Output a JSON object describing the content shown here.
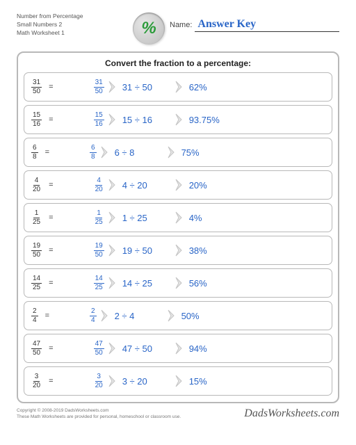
{
  "header": {
    "line1": "Number from Percentage",
    "line2": "Small Numbers 2",
    "line3": "Math Worksheet 1",
    "name_label": "Name:",
    "answer_key": "Answer Key"
  },
  "title": "Convert the fraction to a percentage:",
  "rows": [
    {
      "num": "31",
      "den": "50",
      "div": "31 ÷ 50",
      "pct": "62%"
    },
    {
      "num": "15",
      "den": "16",
      "div": "15 ÷ 16",
      "pct": "93.75%"
    },
    {
      "num": "6",
      "den": "8",
      "div": "6 ÷ 8",
      "pct": "75%"
    },
    {
      "num": "4",
      "den": "20",
      "div": "4 ÷ 20",
      "pct": "20%"
    },
    {
      "num": "1",
      "den": "25",
      "div": "1 ÷ 25",
      "pct": "4%"
    },
    {
      "num": "19",
      "den": "50",
      "div": "19 ÷ 50",
      "pct": "38%"
    },
    {
      "num": "14",
      "den": "25",
      "div": "14 ÷ 25",
      "pct": "56%"
    },
    {
      "num": "2",
      "den": "4",
      "div": "2 ÷ 4",
      "pct": "50%"
    },
    {
      "num": "47",
      "den": "50",
      "div": "47 ÷ 50",
      "pct": "94%"
    },
    {
      "num": "3",
      "den": "20",
      "div": "3 ÷ 20",
      "pct": "15%"
    }
  ],
  "footer": {
    "copyright": "Copyright © 2008-2019 DadsWorksheets.com",
    "note": "These Math Worksheets are provided for personal, homeschool or classroom use.",
    "brand": "DadsWorksheets.com"
  },
  "style": {
    "blue": "#2965c7",
    "border": "#b8b8b8",
    "chevron_fill": "#e6e6e6",
    "chevron_stroke": "#c4c4c4"
  }
}
